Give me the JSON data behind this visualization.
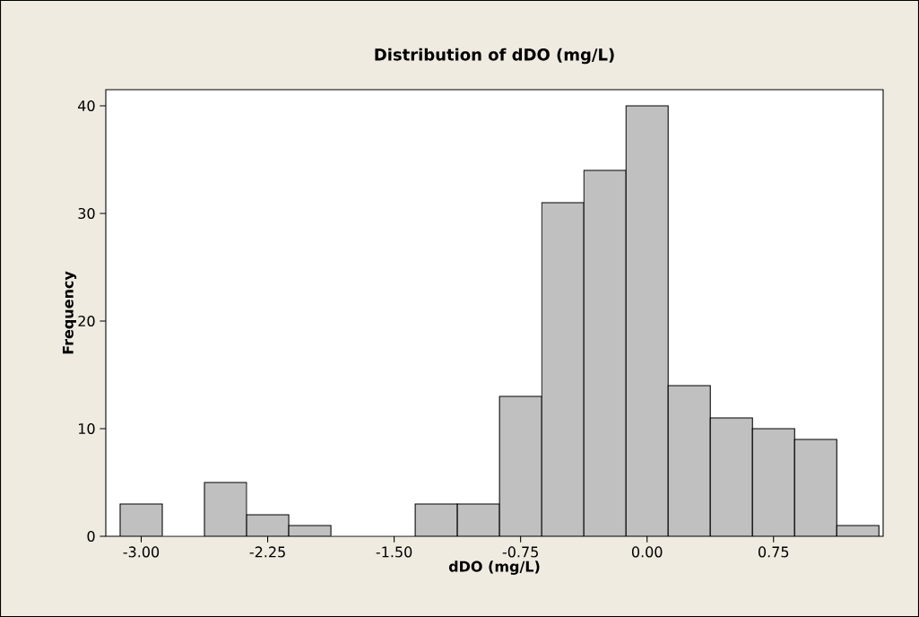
{
  "chart_data": {
    "type": "histogram",
    "title": "Distribution of dDO (mg/L)",
    "xlabel": "dDO (mg/L)",
    "ylabel": "Frequency",
    "bins": [
      -3.125,
      -2.875,
      -2.625,
      -2.375,
      -2.125,
      -1.875,
      -1.625,
      -1.375,
      -1.125,
      -0.875,
      -0.625,
      -0.375,
      -0.125,
      0.125,
      0.375,
      0.625,
      0.875,
      1.125,
      1.375
    ],
    "values": [
      3,
      0,
      5,
      2,
      1,
      0,
      0,
      3,
      3,
      13,
      31,
      34,
      40,
      14,
      11,
      10,
      9,
      1
    ],
    "color": "#c0c0c0",
    "xlim": [
      -3.21,
      1.4
    ],
    "ylim": [
      0,
      41.5
    ],
    "xticks": [
      {
        "value": -3,
        "label": "-3.00"
      },
      {
        "value": -2.25,
        "label": "-2.25"
      },
      {
        "value": -1.5,
        "label": "-1.50"
      },
      {
        "value": -0.75,
        "label": "-0.75"
      },
      {
        "value": 0,
        "label": "0.00"
      },
      {
        "value": 0.75,
        "label": "0.75"
      }
    ],
    "yticks": [
      0,
      10,
      20,
      30,
      40
    ],
    "grid": false
  }
}
